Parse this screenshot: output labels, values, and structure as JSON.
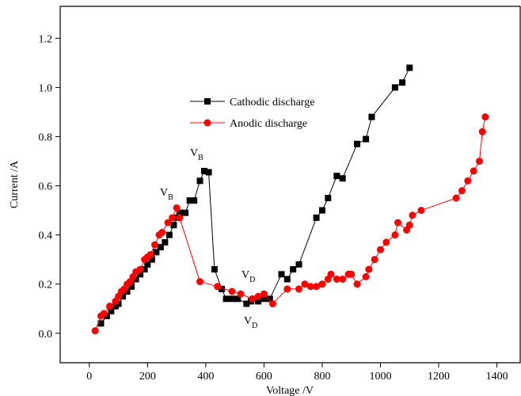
{
  "chart_data": {
    "type": "line",
    "x_label": "Voltage /V",
    "y_label": "Current /A",
    "xlim": [
      -100,
      1480
    ],
    "ylim": [
      -0.12,
      1.33
    ],
    "xticks": [
      0,
      200,
      400,
      600,
      800,
      1000,
      1200,
      1400
    ],
    "yticks": [
      {
        "value": 0,
        "label": "0.0"
      },
      0.2,
      0.4,
      0.6,
      0.8,
      {
        "value": 1,
        "label": "1.0"
      },
      1.2
    ],
    "legend": "upper center",
    "series": [
      {
        "name": "Cathodic discharge",
        "color": "#000000",
        "marker": "square",
        "x": [
          40,
          60,
          75,
          90,
          100,
          115,
          130,
          145,
          160,
          175,
          190,
          200,
          215,
          230,
          245,
          260,
          275,
          290,
          300,
          310,
          330,
          345,
          360,
          380,
          395,
          410,
          430,
          455,
          470,
          490,
          510,
          540,
          555,
          580,
          600,
          620,
          660,
          680,
          700,
          720,
          780,
          800,
          820,
          850,
          870,
          920,
          950,
          970,
          1050,
          1075,
          1100
        ],
        "values": [
          0.04,
          0.07,
          0.09,
          0.11,
          0.12,
          0.15,
          0.17,
          0.19,
          0.22,
          0.24,
          0.26,
          0.28,
          0.3,
          0.33,
          0.35,
          0.37,
          0.4,
          0.44,
          0.47,
          0.49,
          0.49,
          0.54,
          0.54,
          0.62,
          0.66,
          0.655,
          0.26,
          0.18,
          0.14,
          0.14,
          0.14,
          0.12,
          0.13,
          0.13,
          0.14,
          0.14,
          0.24,
          0.22,
          0.26,
          0.28,
          0.47,
          0.5,
          0.55,
          0.64,
          0.63,
          0.77,
          0.79,
          0.88,
          1.0,
          1.02,
          1.08
        ]
      },
      {
        "name": "Anodic discharge",
        "color": "#ff0000",
        "marker": "circle",
        "x": [
          20,
          40,
          50,
          70,
          90,
          100,
          110,
          120,
          130,
          140,
          150,
          160,
          175,
          190,
          200,
          210,
          225,
          240,
          250,
          270,
          285,
          300,
          310,
          380,
          440,
          490,
          520,
          560,
          580,
          600,
          630,
          680,
          720,
          740,
          760,
          780,
          800,
          820,
          830,
          850,
          870,
          890,
          900,
          920,
          950,
          960,
          980,
          1000,
          1020,
          1050,
          1060,
          1090,
          1100,
          1110,
          1140,
          1260,
          1280,
          1300,
          1320,
          1340,
          1350,
          1360
        ],
        "values": [
          0.01,
          0.07,
          0.08,
          0.11,
          0.13,
          0.15,
          0.17,
          0.18,
          0.2,
          0.21,
          0.23,
          0.25,
          0.26,
          0.3,
          0.31,
          0.32,
          0.36,
          0.4,
          0.41,
          0.45,
          0.47,
          0.51,
          0.47,
          0.21,
          0.19,
          0.17,
          0.16,
          0.14,
          0.15,
          0.16,
          0.12,
          0.18,
          0.18,
          0.2,
          0.19,
          0.19,
          0.2,
          0.22,
          0.24,
          0.22,
          0.22,
          0.24,
          0.24,
          0.2,
          0.23,
          0.26,
          0.3,
          0.34,
          0.37,
          0.4,
          0.45,
          0.42,
          0.44,
          0.48,
          0.5,
          0.55,
          0.58,
          0.62,
          0.66,
          0.7,
          0.82,
          0.88
        ]
      }
    ],
    "annotations": [
      {
        "text": "V",
        "subscript": "B"
      },
      {
        "text": "V",
        "subscript": "B"
      },
      {
        "text": "V",
        "subscript": "D"
      },
      {
        "text": "V",
        "subscript": "D"
      }
    ]
  }
}
